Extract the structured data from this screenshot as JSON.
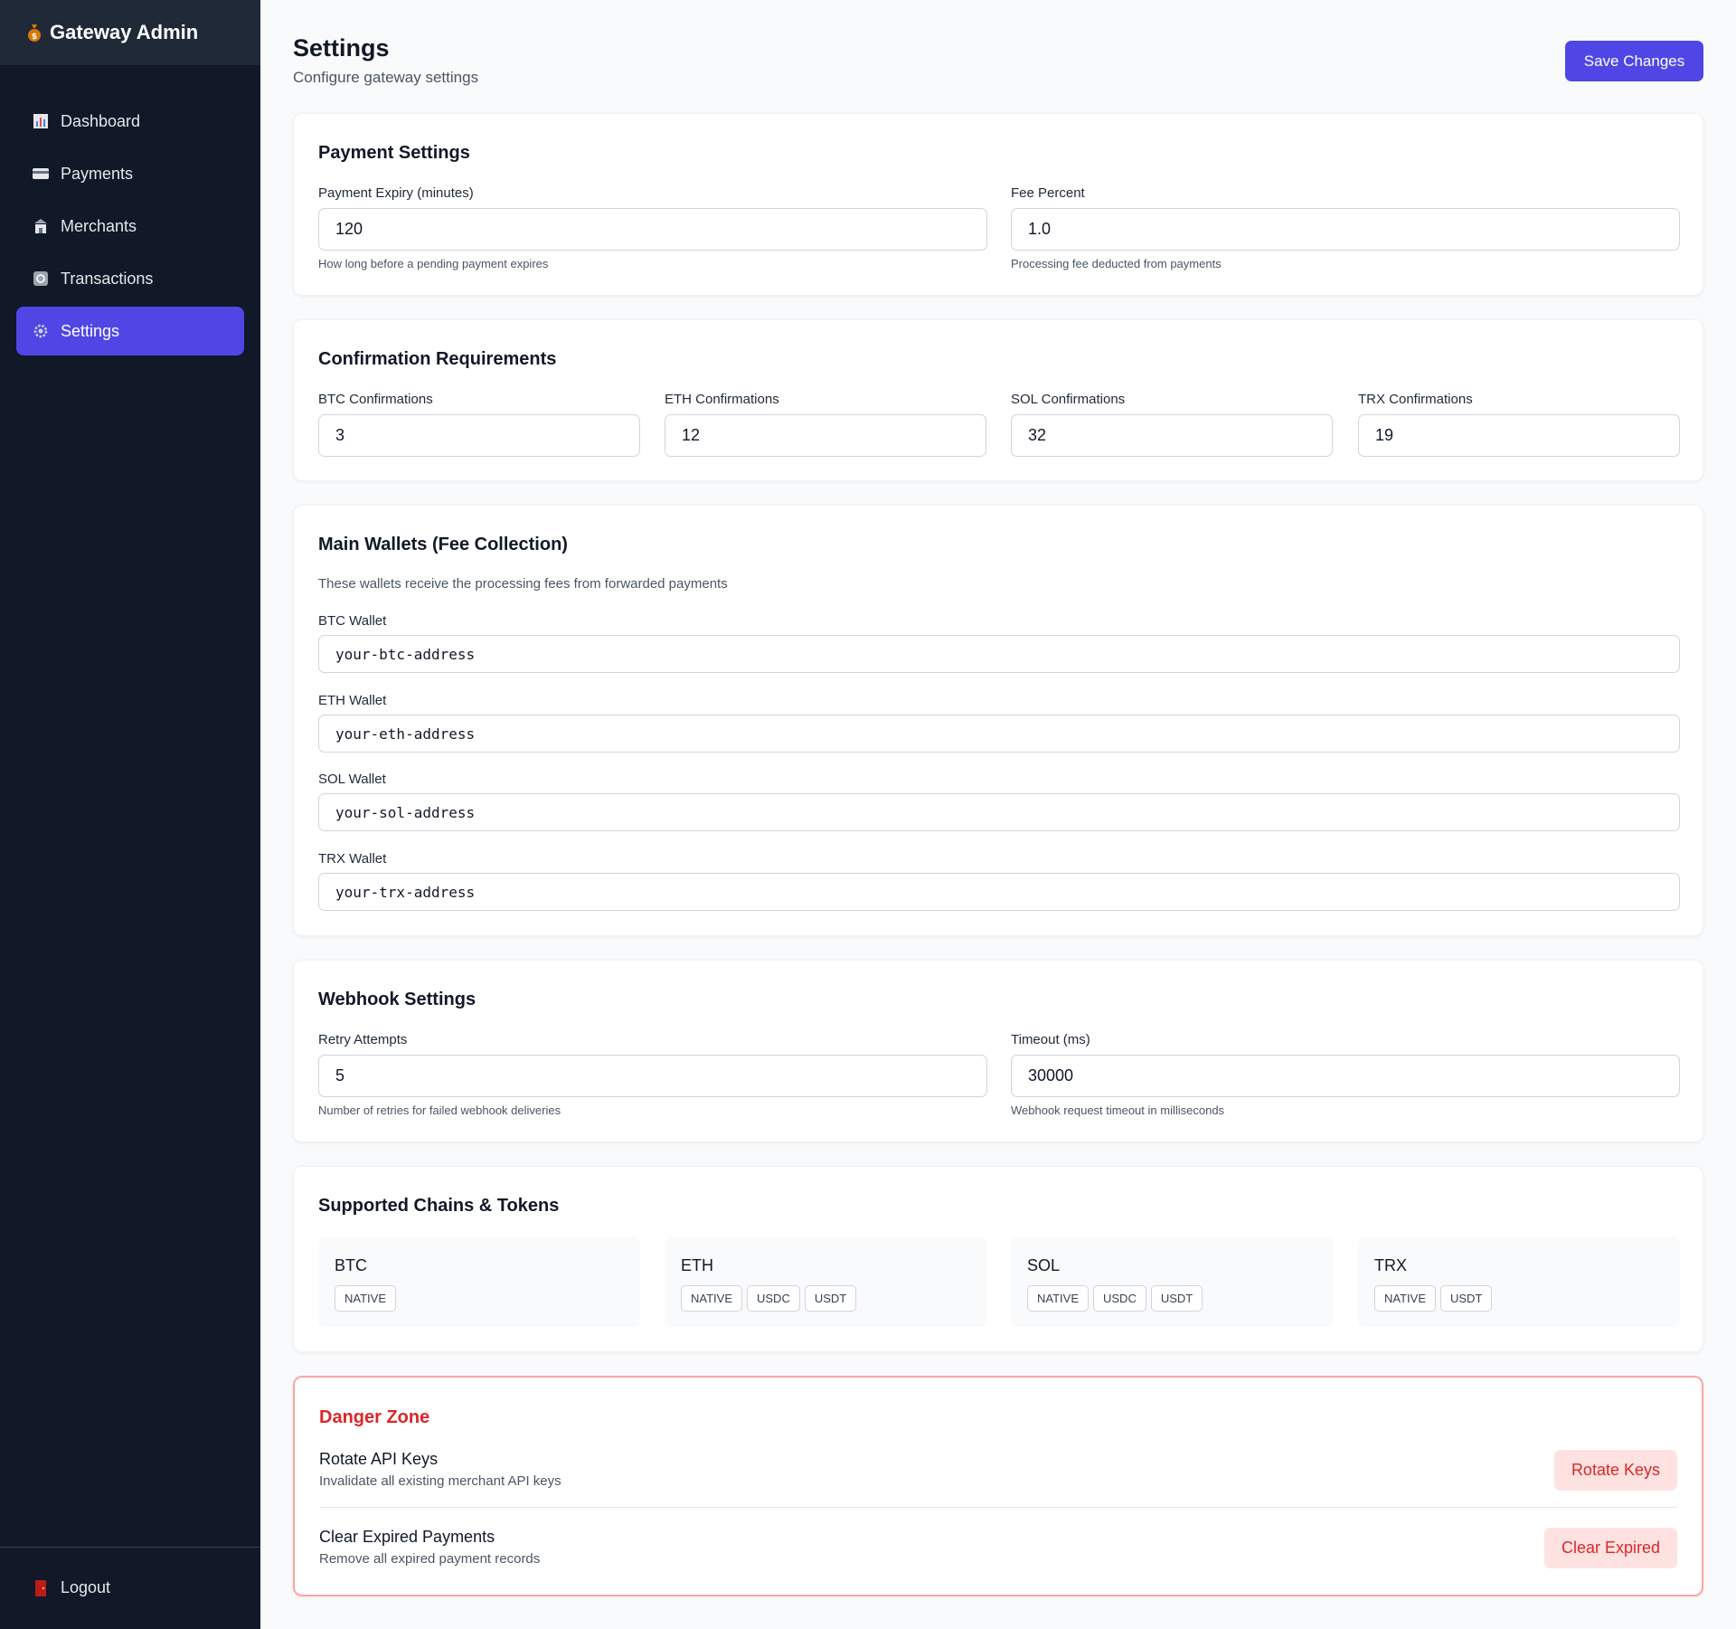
{
  "app": {
    "title": "Gateway Admin",
    "icon": "money-bag-icon"
  },
  "sidebar": {
    "items": [
      {
        "label": "Dashboard",
        "icon": "bar-chart-icon"
      },
      {
        "label": "Payments",
        "icon": "credit-card-icon"
      },
      {
        "label": "Merchants",
        "icon": "merchant-icon"
      },
      {
        "label": "Transactions",
        "icon": "refresh-icon"
      },
      {
        "label": "Settings",
        "icon": "gear-icon",
        "active": true
      }
    ],
    "logout": {
      "label": "Logout",
      "icon": "door-icon"
    }
  },
  "header": {
    "title": "Settings",
    "subtitle": "Configure gateway settings",
    "save_label": "Save Changes"
  },
  "payment_settings": {
    "title": "Payment Settings",
    "expiry": {
      "label": "Payment Expiry (minutes)",
      "value": "120",
      "hint": "How long before a pending payment expires"
    },
    "fee": {
      "label": "Fee Percent",
      "value": "1.0",
      "hint": "Processing fee deducted from payments"
    }
  },
  "confirmations": {
    "title": "Confirmation Requirements",
    "fields": [
      {
        "label": "BTC Confirmations",
        "value": "3"
      },
      {
        "label": "ETH Confirmations",
        "value": "12"
      },
      {
        "label": "SOL Confirmations",
        "value": "32"
      },
      {
        "label": "TRX Confirmations",
        "value": "19"
      }
    ]
  },
  "wallets": {
    "title": "Main Wallets (Fee Collection)",
    "description": "These wallets receive the processing fees from forwarded payments",
    "fields": [
      {
        "label": "BTC Wallet",
        "value": "your-btc-address"
      },
      {
        "label": "ETH Wallet",
        "value": "your-eth-address"
      },
      {
        "label": "SOL Wallet",
        "value": "your-sol-address"
      },
      {
        "label": "TRX Wallet",
        "value": "your-trx-address"
      }
    ]
  },
  "webhook": {
    "title": "Webhook Settings",
    "retry": {
      "label": "Retry Attempts",
      "value": "5",
      "hint": "Number of retries for failed webhook deliveries"
    },
    "timeout": {
      "label": "Timeout (ms)",
      "value": "30000",
      "hint": "Webhook request timeout in milliseconds"
    }
  },
  "chains": {
    "title": "Supported Chains & Tokens",
    "items": [
      {
        "name": "BTC",
        "tokens": [
          "NATIVE"
        ]
      },
      {
        "name": "ETH",
        "tokens": [
          "NATIVE",
          "USDC",
          "USDT"
        ]
      },
      {
        "name": "SOL",
        "tokens": [
          "NATIVE",
          "USDC",
          "USDT"
        ]
      },
      {
        "name": "TRX",
        "tokens": [
          "NATIVE",
          "USDT"
        ]
      }
    ]
  },
  "danger": {
    "title": "Danger Zone",
    "rotate": {
      "title": "Rotate API Keys",
      "description": "Invalidate all existing merchant API keys",
      "button": "Rotate Keys"
    },
    "clear": {
      "title": "Clear Expired Payments",
      "description": "Remove all expired payment records",
      "button": "Clear Expired"
    }
  },
  "colors": {
    "sidebar": "#111827",
    "accent": "#4f46e5",
    "danger": "#dc2626",
    "danger_bg": "#fee2e2"
  }
}
